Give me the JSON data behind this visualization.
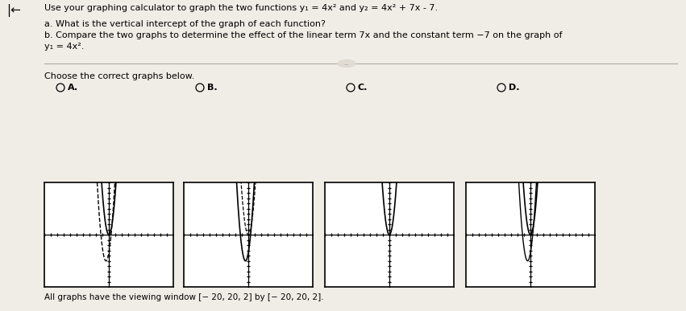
{
  "title_text": "Use your graphing calculator to graph the two functions y₁ = 4x² and y₂ = 4x² + 7x - 7.",
  "question_a": "a. What is the vertical intercept of the graph of each function?",
  "question_b": "b. Compare the two graphs to determine the effect of the linear term 7x and the constant term −7 on the graph of",
  "question_b2": "y₁ = 4x².",
  "choose_text": "Choose the correct graphs below.",
  "labels": [
    "A.",
    "B.",
    "C.",
    "D."
  ],
  "window_text": "All graphs have the viewing window [− 20, 20, 2] by [− 20, 20, 2].",
  "xmin": -20,
  "xmax": 20,
  "ymin": -20,
  "ymax": 20,
  "bg_color": "#f0ece6",
  "graph_bg": "#ffffff"
}
